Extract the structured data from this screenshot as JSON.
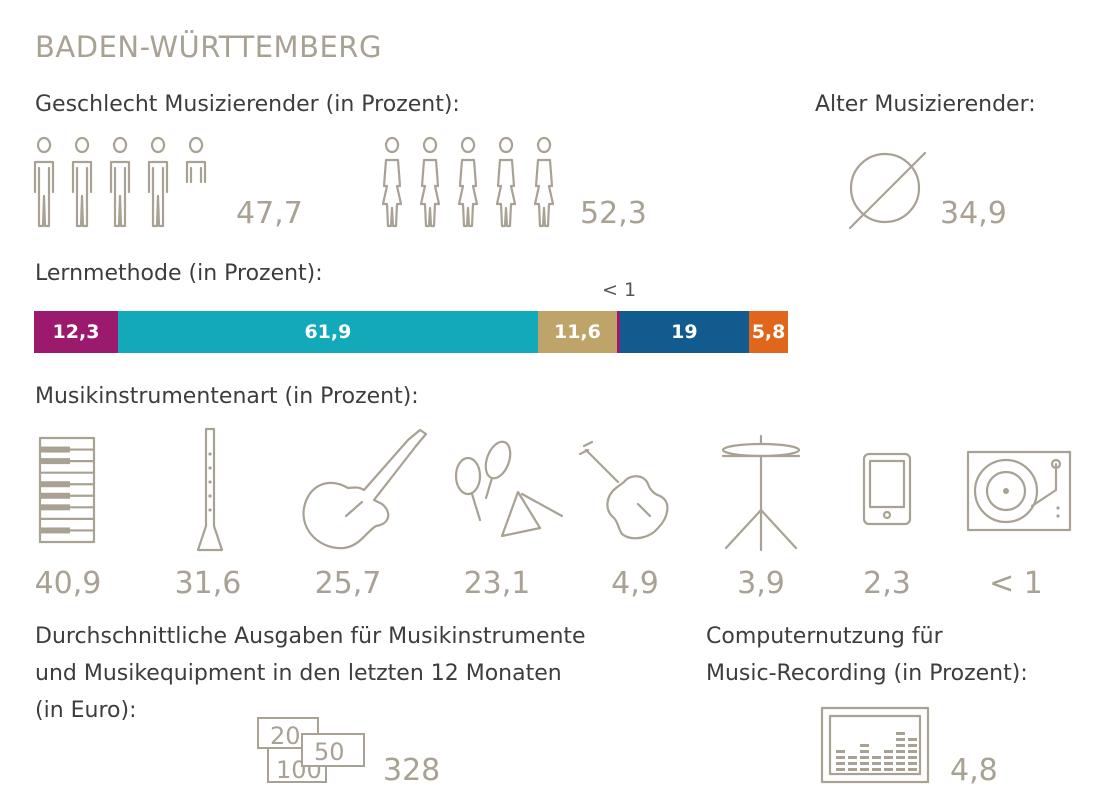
{
  "title": "BADEN-WÜRTTEMBERG",
  "gender": {
    "heading": "Geschlecht Musizierender (in Prozent):",
    "male": "47,7",
    "female": "52,3"
  },
  "age": {
    "heading": "Alter Musizierender:",
    "symbol": "average-sign-icon",
    "value": "34,9"
  },
  "learning": {
    "heading": "Lernmethode (in Prozent):",
    "small_label": "< 1",
    "segments": [
      {
        "label": "12,3",
        "color": "#9c1a6d",
        "share": 12.3
      },
      {
        "label": "61,9",
        "color": "#12a9bb",
        "share": 61.9
      },
      {
        "label": "11,6",
        "color": "#bfa46a",
        "share": 11.6
      },
      {
        "label": "",
        "color": "#9c1a6d",
        "share": 0.45
      },
      {
        "label": "19",
        "color": "#125b8e",
        "share": 19
      },
      {
        "label": "5,8",
        "color": "#e0661c",
        "share": 5.8
      }
    ]
  },
  "instruments": {
    "heading": "Musikinstrumentenart (in Prozent):",
    "items": [
      {
        "icon": "piano-keys-icon",
        "value": "40,9"
      },
      {
        "icon": "clarinet-icon",
        "value": "31,6"
      },
      {
        "icon": "electric-guitar-icon",
        "value": "25,7"
      },
      {
        "icon": "maracas-triangle-icon",
        "value": "23,1"
      },
      {
        "icon": "violin-icon",
        "value": "4,9"
      },
      {
        "icon": "cymbal-icon",
        "value": "3,9"
      },
      {
        "icon": "tablet-icon",
        "value": "2,3"
      },
      {
        "icon": "turntable-icon",
        "value": "< 1"
      }
    ]
  },
  "spending": {
    "line1": "Durchschnittliche Ausgaben für Musikinstrumente",
    "line2": "und Musikequipment in den letzten 12 Monaten",
    "line3": "(in Euro):",
    "notes": [
      "20",
      "50",
      "100"
    ],
    "value": "328"
  },
  "recording": {
    "line1": "Computernutzung für",
    "line2": "Music-Recording (in Prozent):",
    "value": "4,8"
  },
  "chart_data": {
    "type": "bar",
    "title": "Lernmethode (in Prozent):",
    "orientation": "horizontal-stacked",
    "series": [
      {
        "values": [
          12.3
        ]
      },
      {
        "values": [
          61.9
        ]
      },
      {
        "values": [
          11.6
        ]
      },
      {
        "values": [
          0.5
        ]
      },
      {
        "values": [
          19
        ]
      },
      {
        "values": [
          5.8
        ]
      }
    ],
    "data_labels": [
      "12,3",
      "61,9",
      "11,6",
      "< 1",
      "19",
      "5,8"
    ],
    "colors": [
      "#9c1a6d",
      "#12a9bb",
      "#bfa46a",
      "#9c1a6d",
      "#125b8e",
      "#e0661c"
    ]
  }
}
